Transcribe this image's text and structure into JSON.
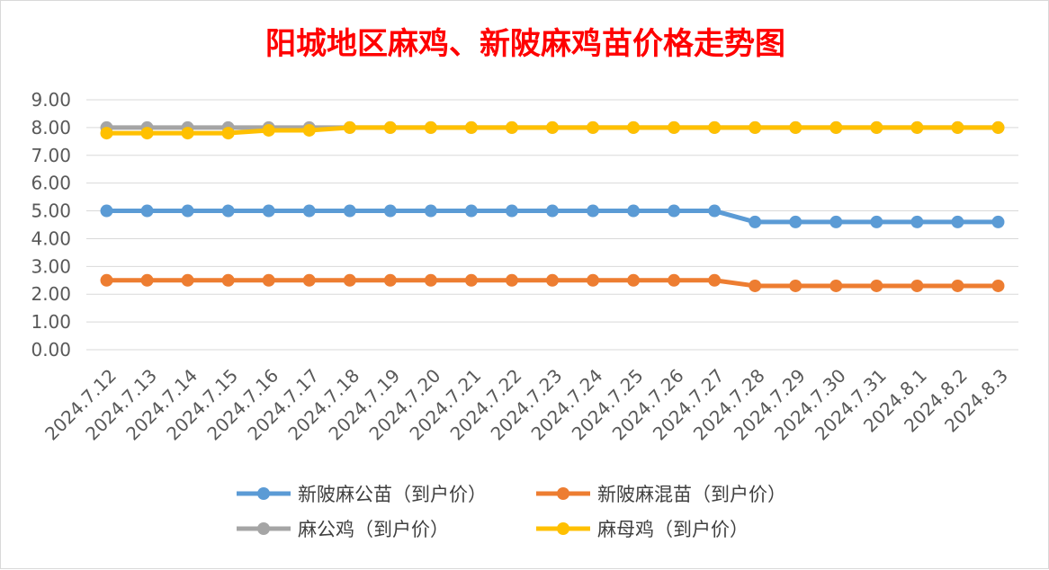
{
  "chart_data": {
    "type": "line",
    "title": "阳城地区麻鸡、新陂麻鸡苗价格走势图",
    "categories": [
      "2024.7.12",
      "2024.7.13",
      "2024.7.14",
      "2024.7.15",
      "2024.7.16",
      "2024.7.17",
      "2024.7.18",
      "2024.7.19",
      "2024.7.20",
      "2024.7.21",
      "2024.7.22",
      "2024.7.23",
      "2024.7.24",
      "2024.7.25",
      "2024.7.26",
      "2024.7.27",
      "2024.7.28",
      "2024.7.29",
      "2024.7.30",
      "2024.7.31",
      "2024.8.1",
      "2024.8.2",
      "2024.8.3"
    ],
    "y_ticks": [
      "0.00",
      "1.00",
      "2.00",
      "3.00",
      "4.00",
      "5.00",
      "6.00",
      "7.00",
      "8.00",
      "9.00"
    ],
    "ylim": [
      0,
      9
    ],
    "grid": true,
    "legend_position": "bottom",
    "series": [
      {
        "name": "新陂麻公苗（到户价）",
        "color": "#5b9bd5",
        "values": [
          5,
          5,
          5,
          5,
          5,
          5,
          5,
          5,
          5,
          5,
          5,
          5,
          5,
          5,
          5,
          5,
          4.6,
          4.6,
          4.6,
          4.6,
          4.6,
          4.6,
          4.6
        ]
      },
      {
        "name": "新陂麻混苗（到户价）",
        "color": "#ed7d31",
        "values": [
          2.5,
          2.5,
          2.5,
          2.5,
          2.5,
          2.5,
          2.5,
          2.5,
          2.5,
          2.5,
          2.5,
          2.5,
          2.5,
          2.5,
          2.5,
          2.5,
          2.3,
          2.3,
          2.3,
          2.3,
          2.3,
          2.3,
          2.3
        ]
      },
      {
        "name": "麻公鸡（到户价）",
        "color": "#a5a5a5",
        "values": [
          8,
          8,
          8,
          8,
          8,
          8,
          8,
          8,
          8,
          8,
          8,
          8,
          8,
          8,
          8,
          8,
          8,
          8,
          8,
          8,
          8,
          8,
          8
        ]
      },
      {
        "name": "麻母鸡（到户价）",
        "color": "#ffc000",
        "values": [
          7.8,
          7.8,
          7.8,
          7.8,
          7.9,
          7.9,
          8,
          8,
          8,
          8,
          8,
          8,
          8,
          8,
          8,
          8,
          8,
          8,
          8,
          8,
          8,
          8,
          8
        ]
      }
    ]
  }
}
